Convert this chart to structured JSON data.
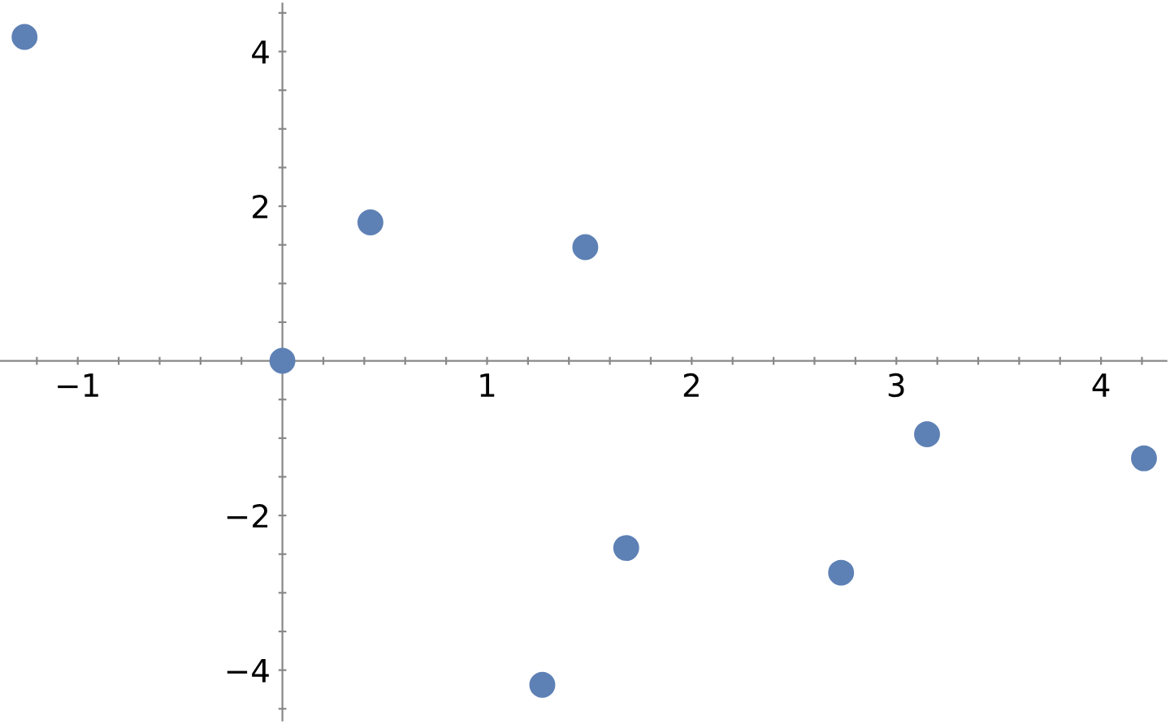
{
  "chart_data": {
    "type": "scatter",
    "x": [
      -1.26,
      0.43,
      0,
      1.48,
      1.27,
      1.68,
      2.73,
      3.15,
      4.21
    ],
    "series": [
      {
        "color": "#5e81b5",
        "values": [
          4.19,
          1.79,
          0,
          1.47,
          -4.19,
          -2.42,
          -2.74,
          -0.95,
          -1.26
        ]
      }
    ],
    "marker": "circle",
    "xlim": [
      -1.38,
      4.32
    ],
    "ylim": [
      -4.65,
      4.62
    ],
    "xticks": [
      {
        "value": -1.2,
        "label": null
      },
      {
        "value": -1,
        "label": "−1"
      },
      {
        "value": -0.8,
        "label": null
      },
      {
        "value": -0.6,
        "label": null
      },
      {
        "value": -0.4,
        "label": null
      },
      {
        "value": -0.2,
        "label": null
      },
      {
        "value": 0.2,
        "label": null
      },
      {
        "value": 0.4,
        "label": null
      },
      {
        "value": 0.6,
        "label": null
      },
      {
        "value": 0.8,
        "label": null
      },
      1,
      {
        "value": 1.2,
        "label": null
      },
      {
        "value": 1.4,
        "label": null
      },
      {
        "value": 1.6,
        "label": null
      },
      {
        "value": 1.8,
        "label": null
      },
      2,
      {
        "value": 2.2,
        "label": null
      },
      {
        "value": 2.4,
        "label": null
      },
      {
        "value": 2.6,
        "label": null
      },
      {
        "value": 2.8,
        "label": null
      },
      3,
      {
        "value": 3.2,
        "label": null
      },
      {
        "value": 3.4,
        "label": null
      },
      {
        "value": 3.6,
        "label": null
      },
      {
        "value": 3.8,
        "label": null
      },
      4,
      {
        "value": 4.2,
        "label": null
      }
    ],
    "yticks": [
      {
        "value": -4.5,
        "label": null
      },
      {
        "value": -4,
        "label": "−4"
      },
      {
        "value": -3.5,
        "label": null
      },
      {
        "value": -3,
        "label": null
      },
      {
        "value": -2.5,
        "label": null
      },
      {
        "value": -2,
        "label": "−2"
      },
      {
        "value": -1.5,
        "label": null
      },
      {
        "value": -1,
        "label": null
      },
      {
        "value": -0.5,
        "label": null
      },
      {
        "value": 0.5,
        "label": null
      },
      {
        "value": 1,
        "label": null
      },
      {
        "value": 1.5,
        "label": null
      },
      2,
      {
        "value": 2.5,
        "label": null
      },
      {
        "value": 3,
        "label": null
      },
      {
        "value": 3.5,
        "label": null
      },
      4,
      {
        "value": 4.5,
        "label": null
      }
    ],
    "grid": false,
    "legend": false
  }
}
